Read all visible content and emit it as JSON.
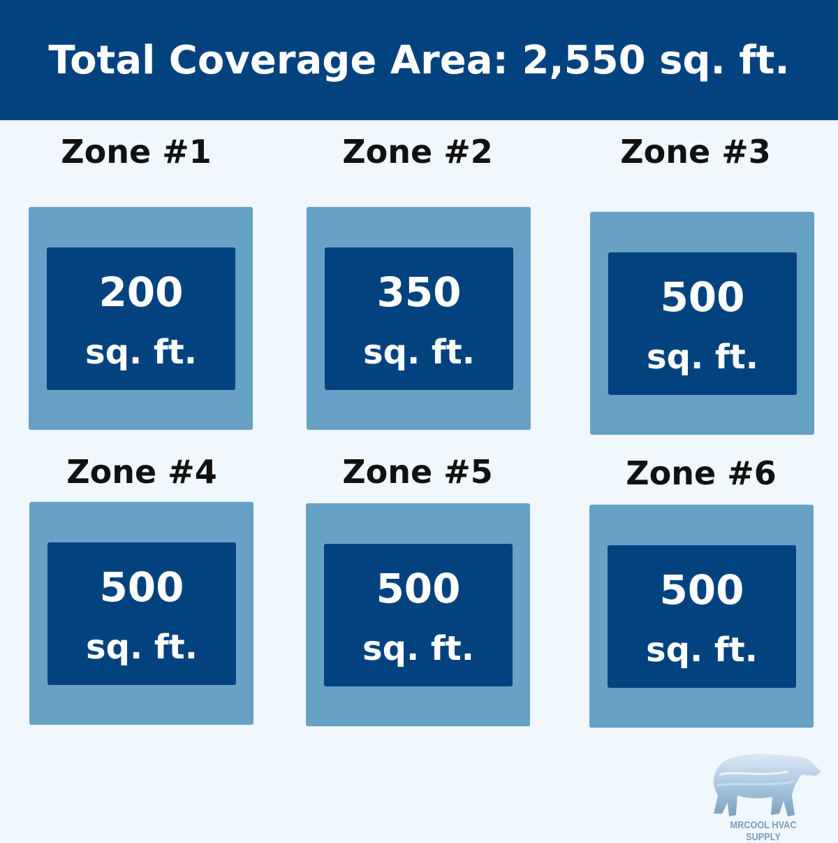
{
  "header": {
    "title": "Total Coverage Area: 2,550 sq. ft."
  },
  "zones": [
    {
      "label": "Zone #1",
      "area": "200",
      "unit": "sq. ft."
    },
    {
      "label": "Zone #2",
      "area": "350",
      "unit": "sq. ft."
    },
    {
      "label": "Zone #3",
      "area": "500",
      "unit": "sq. ft."
    },
    {
      "label": "Zone #4",
      "area": "500",
      "unit": "sq. ft."
    },
    {
      "label": "Zone #5",
      "area": "500",
      "unit": "sq. ft."
    },
    {
      "label": "Zone #6",
      "area": "500",
      "unit": "sq. ft."
    }
  ],
  "logo": {
    "text": "MRCOOL HVAC SUPPLY",
    "icon": "polar-bear-icon"
  },
  "colors": {
    "header": "#02427f",
    "outer_box": "#68a1c6",
    "inner_box": "#02427f",
    "background": "#f0f8fe"
  }
}
